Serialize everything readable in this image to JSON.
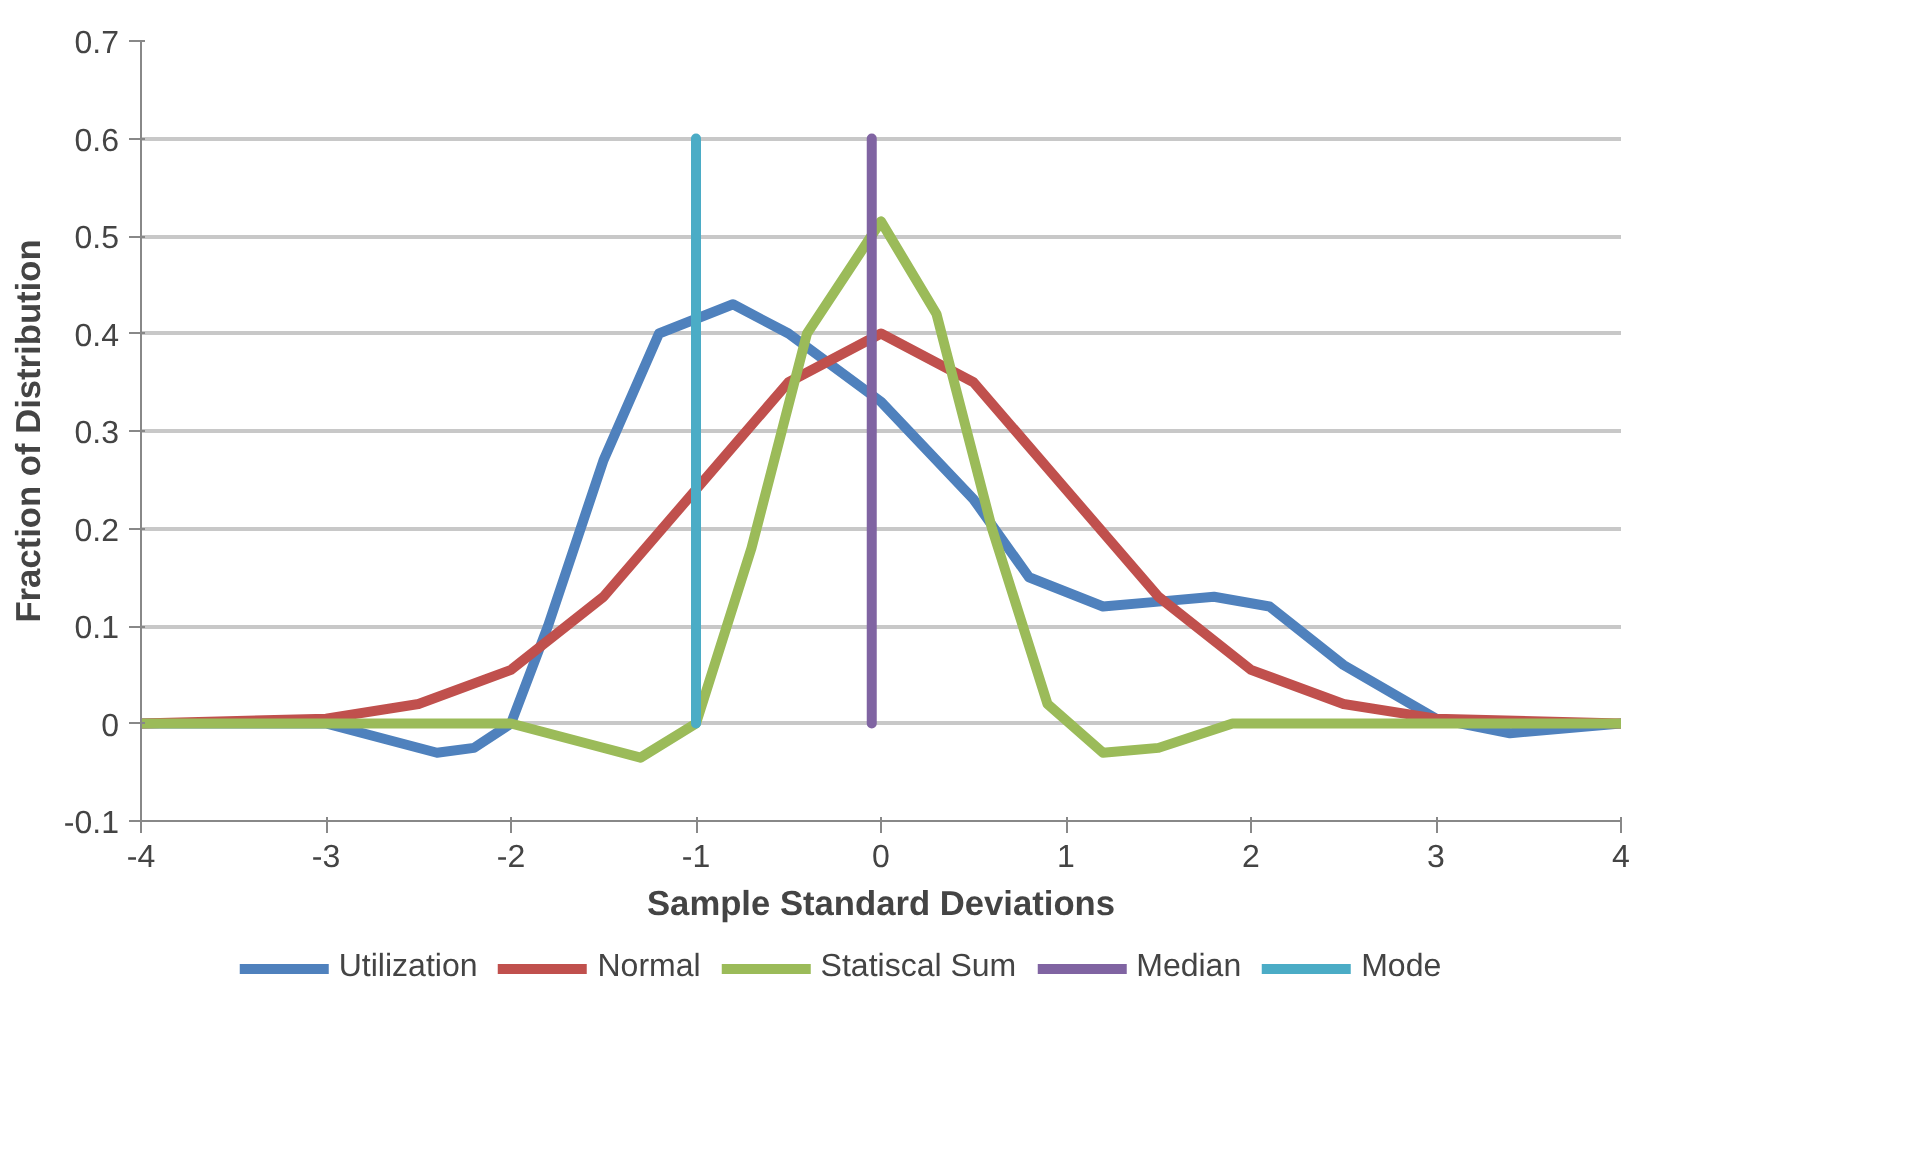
{
  "chart_data": {
    "type": "line",
    "xlabel": "Sample Standard Deviations",
    "ylabel": "Fraction of Distribution",
    "xlim": [
      -4,
      4
    ],
    "ylim": [
      -0.1,
      0.7
    ],
    "xticks": [
      -4,
      -3,
      -2,
      -1,
      0,
      1,
      2,
      3,
      4
    ],
    "yticks": [
      -0.1,
      0,
      0.1,
      0.2,
      0.3,
      0.4,
      0.5,
      0.6,
      0.7
    ],
    "grid": "y",
    "legend": "bottom",
    "marker": "none",
    "line_style": "solid",
    "series": [
      {
        "name": "Utilization",
        "color": "#4f81bd",
        "x": [
          -4,
          -3,
          -2.8,
          -2.4,
          -2.2,
          -2,
          -1.8,
          -1.5,
          -1.2,
          -0.8,
          -0.5,
          0,
          0.5,
          0.8,
          1.2,
          1.5,
          1.8,
          2.1,
          2.5,
          3,
          3.4,
          4
        ],
        "values": [
          0,
          0,
          -0.01,
          -0.03,
          -0.025,
          0,
          0.1,
          0.27,
          0.4,
          0.43,
          0.4,
          0.33,
          0.23,
          0.15,
          0.12,
          0.125,
          0.13,
          0.12,
          0.06,
          0.005,
          -0.01,
          0
        ]
      },
      {
        "name": "Normal",
        "color": "#c0504d",
        "x": [
          -4,
          -3,
          -2.5,
          -2,
          -1.5,
          -1,
          -0.5,
          0,
          0.5,
          1,
          1.5,
          2,
          2.5,
          3,
          4
        ],
        "values": [
          0,
          0.005,
          0.02,
          0.055,
          0.13,
          0.24,
          0.35,
          0.4,
          0.35,
          0.24,
          0.13,
          0.055,
          0.02,
          0.005,
          0
        ]
      },
      {
        "name": "Statiscal Sum",
        "color": "#9bbb59",
        "x": [
          -4,
          -2,
          -1.6,
          -1.3,
          -1,
          -0.7,
          -0.4,
          0,
          0.3,
          0.6,
          0.9,
          1.2,
          1.5,
          1.9,
          3,
          4
        ],
        "values": [
          0,
          0,
          -0.02,
          -0.035,
          0,
          0.18,
          0.4,
          0.515,
          0.42,
          0.2,
          0.02,
          -0.03,
          -0.025,
          0,
          0,
          0
        ]
      },
      {
        "name": "Median",
        "color": "#8064a2",
        "x": [
          -0.05,
          -0.05
        ],
        "values": [
          0,
          0.6
        ]
      },
      {
        "name": "Mode",
        "color": "#4bacc6",
        "x": [
          -1,
          -1
        ],
        "values": [
          0,
          0.6
        ]
      }
    ]
  }
}
